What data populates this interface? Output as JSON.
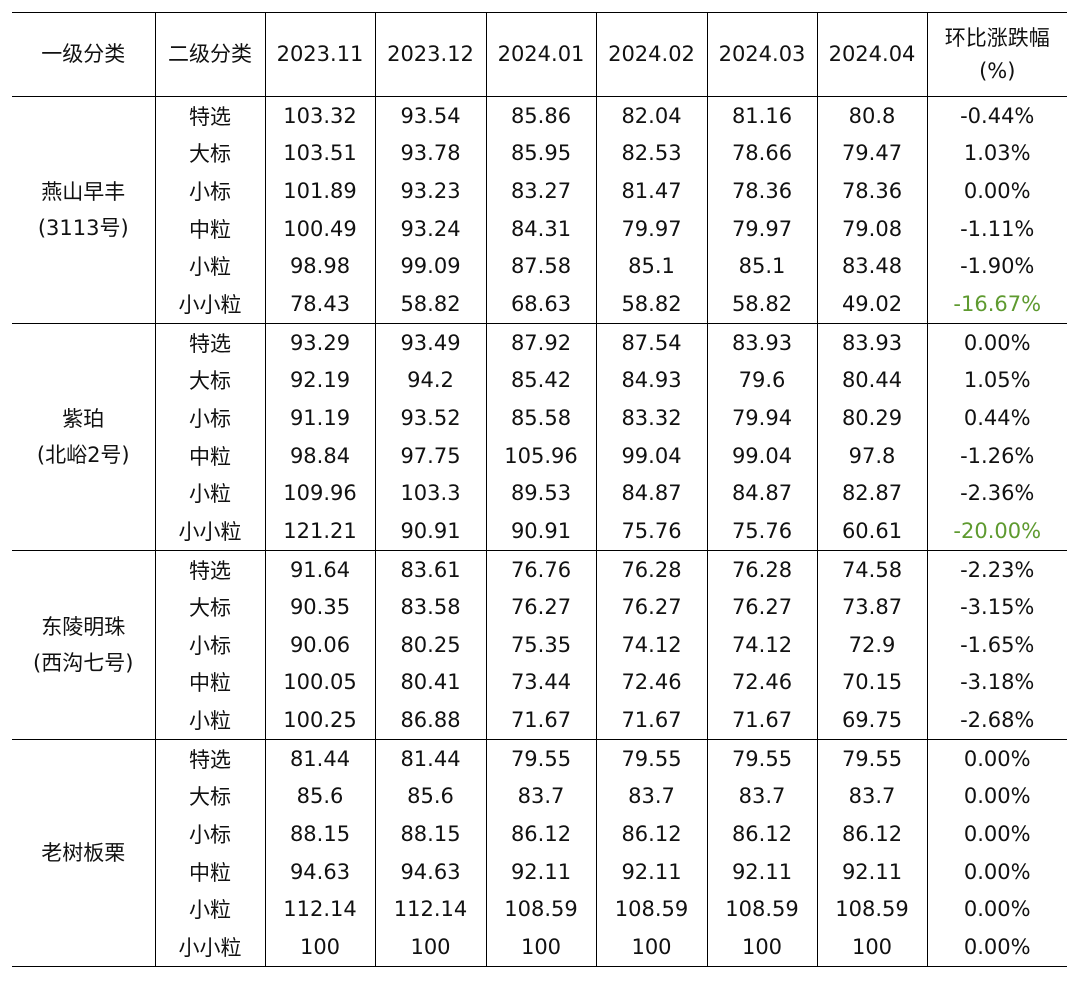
{
  "table": {
    "headers": [
      "一级分类",
      "二级分类",
      "2023.11",
      "2023.12",
      "2024.01",
      "2024.02",
      "2024.03",
      "2024.04",
      "环比涨跌幅",
      "(%)"
    ],
    "groups": [
      {
        "name_line1": "燕山早丰",
        "name_line2": "(3113号)",
        "rows": [
          {
            "sub": "特选",
            "values": [
              "103.32",
              "93.54",
              "85.86",
              "82.04",
              "81.16",
              "80.8"
            ],
            "change": "-0.44%"
          },
          {
            "sub": "大标",
            "values": [
              "103.51",
              "93.78",
              "85.95",
              "82.53",
              "78.66",
              "79.47"
            ],
            "change": "1.03%"
          },
          {
            "sub": "小标",
            "values": [
              "101.89",
              "93.23",
              "83.27",
              "81.47",
              "78.36",
              "78.36"
            ],
            "change": "0.00%"
          },
          {
            "sub": "中粒",
            "values": [
              "100.49",
              "93.24",
              "84.31",
              "79.97",
              "79.97",
              "79.08"
            ],
            "change": "-1.11%"
          },
          {
            "sub": "小粒",
            "values": [
              "98.98",
              "99.09",
              "87.58",
              "85.1",
              "85.1",
              "83.48"
            ],
            "change": "-1.90%"
          },
          {
            "sub": "小小粒",
            "values": [
              "78.43",
              "58.82",
              "68.63",
              "58.82",
              "58.82",
              "49.02"
            ],
            "change": "-16.67%",
            "highlight": true
          }
        ]
      },
      {
        "name_line1": "紫珀",
        "name_line2": "(北峪2号)",
        "rows": [
          {
            "sub": "特选",
            "values": [
              "93.29",
              "93.49",
              "87.92",
              "87.54",
              "83.93",
              "83.93"
            ],
            "change": "0.00%"
          },
          {
            "sub": "大标",
            "values": [
              "92.19",
              "94.2",
              "85.42",
              "84.93",
              "79.6",
              "80.44"
            ],
            "change": "1.05%"
          },
          {
            "sub": "小标",
            "values": [
              "91.19",
              "93.52",
              "85.58",
              "83.32",
              "79.94",
              "80.29"
            ],
            "change": "0.44%"
          },
          {
            "sub": "中粒",
            "values": [
              "98.84",
              "97.75",
              "105.96",
              "99.04",
              "99.04",
              "97.8"
            ],
            "change": "-1.26%"
          },
          {
            "sub": "小粒",
            "values": [
              "109.96",
              "103.3",
              "89.53",
              "84.87",
              "84.87",
              "82.87"
            ],
            "change": "-2.36%"
          },
          {
            "sub": "小小粒",
            "values": [
              "121.21",
              "90.91",
              "90.91",
              "75.76",
              "75.76",
              "60.61"
            ],
            "change": "-20.00%",
            "highlight": true
          }
        ]
      },
      {
        "name_line1": "东陵明珠",
        "name_line2": "(西沟七号)",
        "rows": [
          {
            "sub": "特选",
            "values": [
              "91.64",
              "83.61",
              "76.76",
              "76.28",
              "76.28",
              "74.58"
            ],
            "change": "-2.23%"
          },
          {
            "sub": "大标",
            "values": [
              "90.35",
              "83.58",
              "76.27",
              "76.27",
              "76.27",
              "73.87"
            ],
            "change": "-3.15%"
          },
          {
            "sub": "小标",
            "values": [
              "90.06",
              "80.25",
              "75.35",
              "74.12",
              "74.12",
              "72.9"
            ],
            "change": "-1.65%"
          },
          {
            "sub": "中粒",
            "values": [
              "100.05",
              "80.41",
              "73.44",
              "72.46",
              "72.46",
              "70.15"
            ],
            "change": "-3.18%"
          },
          {
            "sub": "小粒",
            "values": [
              "100.25",
              "86.88",
              "71.67",
              "71.67",
              "71.67",
              "69.75"
            ],
            "change": "-2.68%"
          }
        ]
      },
      {
        "name_line1": "老树板栗",
        "name_line2": "",
        "rows": [
          {
            "sub": "特选",
            "values": [
              "81.44",
              "81.44",
              "79.55",
              "79.55",
              "79.55",
              "79.55"
            ],
            "change": "0.00%"
          },
          {
            "sub": "大标",
            "values": [
              "85.6",
              "85.6",
              "83.7",
              "83.7",
              "83.7",
              "83.7"
            ],
            "change": "0.00%"
          },
          {
            "sub": "小标",
            "values": [
              "88.15",
              "88.15",
              "86.12",
              "86.12",
              "86.12",
              "86.12"
            ],
            "change": "0.00%"
          },
          {
            "sub": "中粒",
            "values": [
              "94.63",
              "94.63",
              "92.11",
              "92.11",
              "92.11",
              "92.11"
            ],
            "change": "0.00%"
          },
          {
            "sub": "小粒",
            "values": [
              "112.14",
              "112.14",
              "108.59",
              "108.59",
              "108.59",
              "108.59"
            ],
            "change": "0.00%"
          },
          {
            "sub": "小小粒",
            "values": [
              "100",
              "100",
              "100",
              "100",
              "100",
              "100"
            ],
            "change": "0.00%"
          }
        ]
      }
    ]
  }
}
